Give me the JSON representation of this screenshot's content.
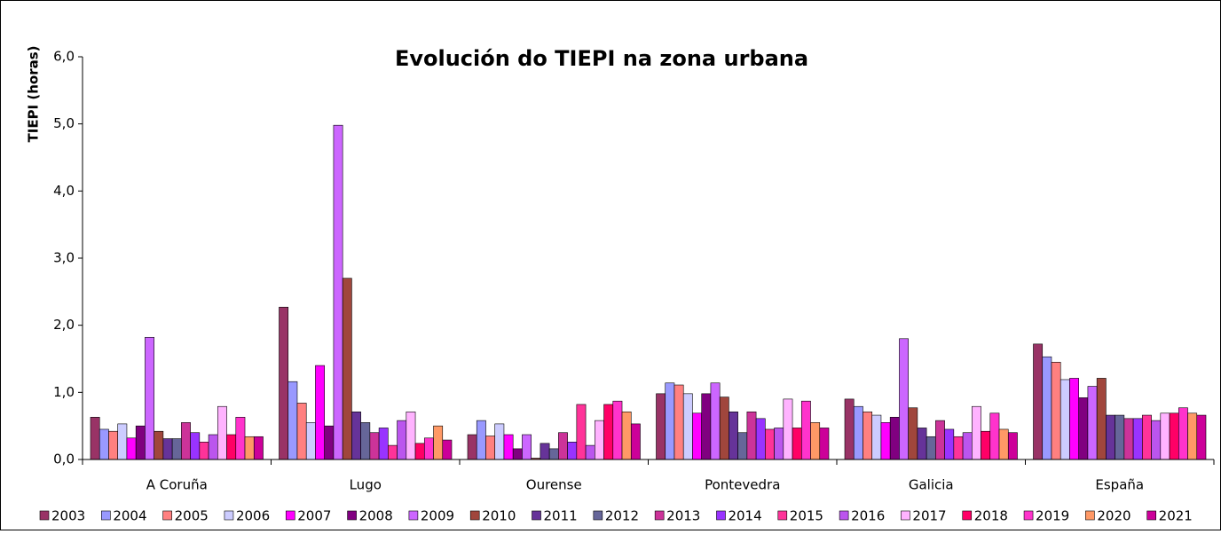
{
  "chart_data": {
    "type": "bar",
    "title": "Evolución do TIEPI na zona urbana",
    "y_label": "TIEPI (horas)",
    "categories": [
      "A Coruña",
      "Lugo",
      "Ourense",
      "Pontevedra",
      "Galicia",
      "España"
    ],
    "ylim": [
      0,
      6
    ],
    "yticks": [
      {
        "value": 0,
        "label": "0,0"
      },
      {
        "value": 1,
        "label": "1,0"
      },
      {
        "value": 2,
        "label": "2,0"
      },
      {
        "value": 3,
        "label": "3,0"
      },
      {
        "value": 4,
        "label": "4,0"
      },
      {
        "value": 5,
        "label": "5,0"
      },
      {
        "value": 6,
        "label": "6,0"
      }
    ],
    "series": [
      {
        "name": "2003",
        "color": "#993366",
        "values": [
          0.63,
          2.27,
          0.37,
          0.98,
          0.9,
          1.72
        ]
      },
      {
        "name": "2004",
        "color": "#9999ff",
        "values": [
          0.45,
          1.16,
          0.58,
          1.14,
          0.79,
          1.53
        ]
      },
      {
        "name": "2005",
        "color": "#ff8080",
        "values": [
          0.42,
          0.84,
          0.35,
          1.11,
          0.71,
          1.45
        ]
      },
      {
        "name": "2006",
        "color": "#ccccff",
        "values": [
          0.53,
          0.55,
          0.53,
          0.98,
          0.66,
          1.19
        ]
      },
      {
        "name": "2007",
        "color": "#ff00ff",
        "values": [
          0.32,
          1.4,
          0.37,
          0.69,
          0.55,
          1.21
        ]
      },
      {
        "name": "2008",
        "color": "#800080",
        "values": [
          0.5,
          0.5,
          0.16,
          0.98,
          0.63,
          0.92
        ]
      },
      {
        "name": "2009",
        "color": "#cc66ff",
        "values": [
          1.82,
          4.98,
          0.37,
          1.14,
          1.8,
          1.09
        ]
      },
      {
        "name": "2010",
        "color": "#a0463c",
        "values": [
          0.42,
          2.7,
          0.02,
          0.93,
          0.77,
          1.21
        ]
      },
      {
        "name": "2011",
        "color": "#663399",
        "values": [
          0.31,
          0.71,
          0.24,
          0.71,
          0.47,
          0.66
        ]
      },
      {
        "name": "2012",
        "color": "#666699",
        "values": [
          0.31,
          0.55,
          0.16,
          0.4,
          0.34,
          0.66
        ]
      },
      {
        "name": "2013",
        "color": "#cc3399",
        "values": [
          0.55,
          0.4,
          0.4,
          0.71,
          0.58,
          0.61
        ]
      },
      {
        "name": "2014",
        "color": "#9933ff",
        "values": [
          0.4,
          0.47,
          0.26,
          0.61,
          0.45,
          0.61
        ]
      },
      {
        "name": "2015",
        "color": "#ff3399",
        "values": [
          0.26,
          0.21,
          0.82,
          0.45,
          0.34,
          0.66
        ]
      },
      {
        "name": "2016",
        "color": "#bb55ee",
        "values": [
          0.37,
          0.58,
          0.21,
          0.47,
          0.4,
          0.58
        ]
      },
      {
        "name": "2017",
        "color": "#ffb3ff",
        "values": [
          0.79,
          0.71,
          0.58,
          0.9,
          0.79,
          0.69
        ]
      },
      {
        "name": "2018",
        "color": "#ff0066",
        "values": [
          0.37,
          0.24,
          0.82,
          0.47,
          0.42,
          0.69
        ]
      },
      {
        "name": "2019",
        "color": "#ff33cc",
        "values": [
          0.63,
          0.32,
          0.87,
          0.87,
          0.69,
          0.77
        ]
      },
      {
        "name": "2020",
        "color": "#ff9966",
        "values": [
          0.34,
          0.5,
          0.71,
          0.55,
          0.45,
          0.69
        ]
      },
      {
        "name": "2021",
        "color": "#cc0099",
        "values": [
          0.34,
          0.29,
          0.53,
          0.47,
          0.4,
          0.66
        ]
      }
    ]
  }
}
